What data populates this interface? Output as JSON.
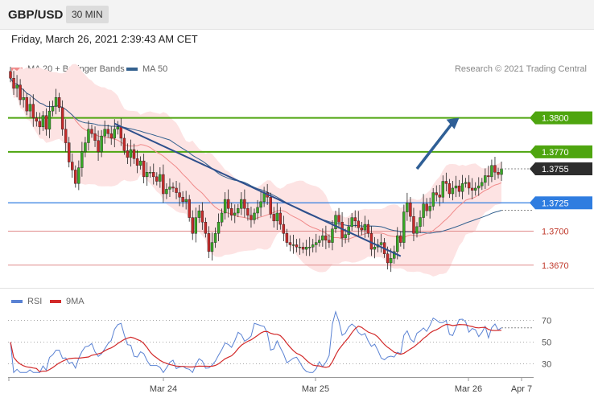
{
  "header": {
    "pair": "GBP/USD",
    "timeframe": "30 MIN"
  },
  "datetime": "Friday, March 26, 2021 2:39:43 AM CET",
  "credit": "Research © 2021 Trading Central",
  "colors": {
    "ma20": "#f08a8a",
    "bollinger": "#fde3e3",
    "ma50": "#34618f",
    "green": "#4ea50f",
    "blue": "#2f7de0",
    "red_line": "#e08a8a",
    "candle_up": "#38a826",
    "candle_down": "#c62a2a",
    "rsi": "#5a82d3",
    "rsi_ma": "#d22a2a",
    "dark_label": "#2d2d2d"
  },
  "chart_data": [
    {
      "type": "candlestick",
      "pair": "GBP/USD",
      "timeframe": "30 MIN",
      "legend": [
        "MA 20 + Bollinger Bands",
        "MA 50"
      ],
      "legend_placement": "top-left",
      "x_ticks": [
        "Mar 24",
        "Mar 25",
        "Mar 26",
        "Apr 7"
      ],
      "y_range": [
        1.365,
        1.386
      ],
      "levels": [
        {
          "value": 1.38,
          "label": "1.3800",
          "style": "green-line"
        },
        {
          "value": 1.377,
          "label": "1.3770",
          "style": "green-line"
        },
        {
          "value": 1.3755,
          "label": "1.3755",
          "style": "current-price"
        },
        {
          "value": 1.3725,
          "label": "1.3725",
          "style": "blue-line"
        },
        {
          "value": 1.37,
          "label": "1.3700",
          "style": "red-line"
        },
        {
          "value": 1.367,
          "label": "1.3670",
          "style": "red-line"
        }
      ],
      "trendline": {
        "from": {
          "bar": 32,
          "price": 1.3795
        },
        "to": {
          "bar": 120,
          "price": 1.3678
        }
      },
      "forecast_arrow": {
        "from": {
          "bar": 125,
          "price": 1.3755
        },
        "to": {
          "bar": 138,
          "price": 1.38
        }
      },
      "closes": [
        1.3835,
        1.3826,
        1.3829,
        1.3816,
        1.3818,
        1.3806,
        1.3812,
        1.38,
        1.3797,
        1.3792,
        1.3802,
        1.379,
        1.3806,
        1.381,
        1.3818,
        1.3809,
        1.379,
        1.3778,
        1.3761,
        1.3754,
        1.3742,
        1.3756,
        1.377,
        1.3778,
        1.379,
        1.3786,
        1.378,
        1.377,
        1.3784,
        1.379,
        1.3786,
        1.3782,
        1.379,
        1.3792,
        1.3782,
        1.3771,
        1.3765,
        1.3772,
        1.3764,
        1.3758,
        1.3762,
        1.3748,
        1.3752,
        1.3752,
        1.3748,
        1.3744,
        1.375,
        1.3733,
        1.3737,
        1.3739,
        1.3738,
        1.3734,
        1.373,
        1.3726,
        1.3728,
        1.3712,
        1.3698,
        1.3712,
        1.3718,
        1.3708,
        1.3698,
        1.3682,
        1.369,
        1.3698,
        1.3708,
        1.3716,
        1.3728,
        1.372,
        1.3714,
        1.3716,
        1.372,
        1.3728,
        1.372,
        1.3714,
        1.371,
        1.3716,
        1.3721,
        1.3726,
        1.3734,
        1.373,
        1.3715,
        1.3709,
        1.3716,
        1.3706,
        1.3698,
        1.369,
        1.3688,
        1.3688,
        1.3686,
        1.3686,
        1.3684,
        1.3686,
        1.3686,
        1.3688,
        1.369,
        1.3692,
        1.3696,
        1.3692,
        1.369,
        1.3702,
        1.3714,
        1.3708,
        1.3694,
        1.3697,
        1.3704,
        1.3712,
        1.3709,
        1.3703,
        1.3701,
        1.3706,
        1.3698,
        1.3684,
        1.3686,
        1.3688,
        1.369,
        1.368,
        1.3672,
        1.3676,
        1.3682,
        1.3696,
        1.369,
        1.3717,
        1.3725,
        1.3713,
        1.3698,
        1.3704,
        1.3712,
        1.3724,
        1.3718,
        1.3722,
        1.3734,
        1.3732,
        1.373,
        1.3744,
        1.3742,
        1.3733,
        1.3738,
        1.374,
        1.3735,
        1.3742,
        1.3743,
        1.3738,
        1.3736,
        1.3738,
        1.374,
        1.3743,
        1.3749,
        1.3748,
        1.3758,
        1.3752,
        1.375,
        1.3755
      ],
      "series": [
        {
          "name": "MA 20 + Bollinger Bands",
          "kind": "ma+bands",
          "period": 20,
          "band_mult": 2
        },
        {
          "name": "MA 50",
          "kind": "ma",
          "period": 50
        }
      ]
    },
    {
      "type": "line",
      "legend": [
        "RSI",
        "9MA"
      ],
      "legend_placement": "top-left",
      "y_ticks": [
        70,
        50,
        30
      ],
      "y_range": [
        20,
        80
      ],
      "x_ticks": [
        "Mar 24",
        "Mar 25",
        "Mar 26",
        "Apr 7"
      ],
      "series": [
        {
          "name": "RSI",
          "kind": "rsi",
          "period": 14
        },
        {
          "name": "9MA",
          "kind": "rsi-ma",
          "period": 9
        }
      ]
    }
  ]
}
